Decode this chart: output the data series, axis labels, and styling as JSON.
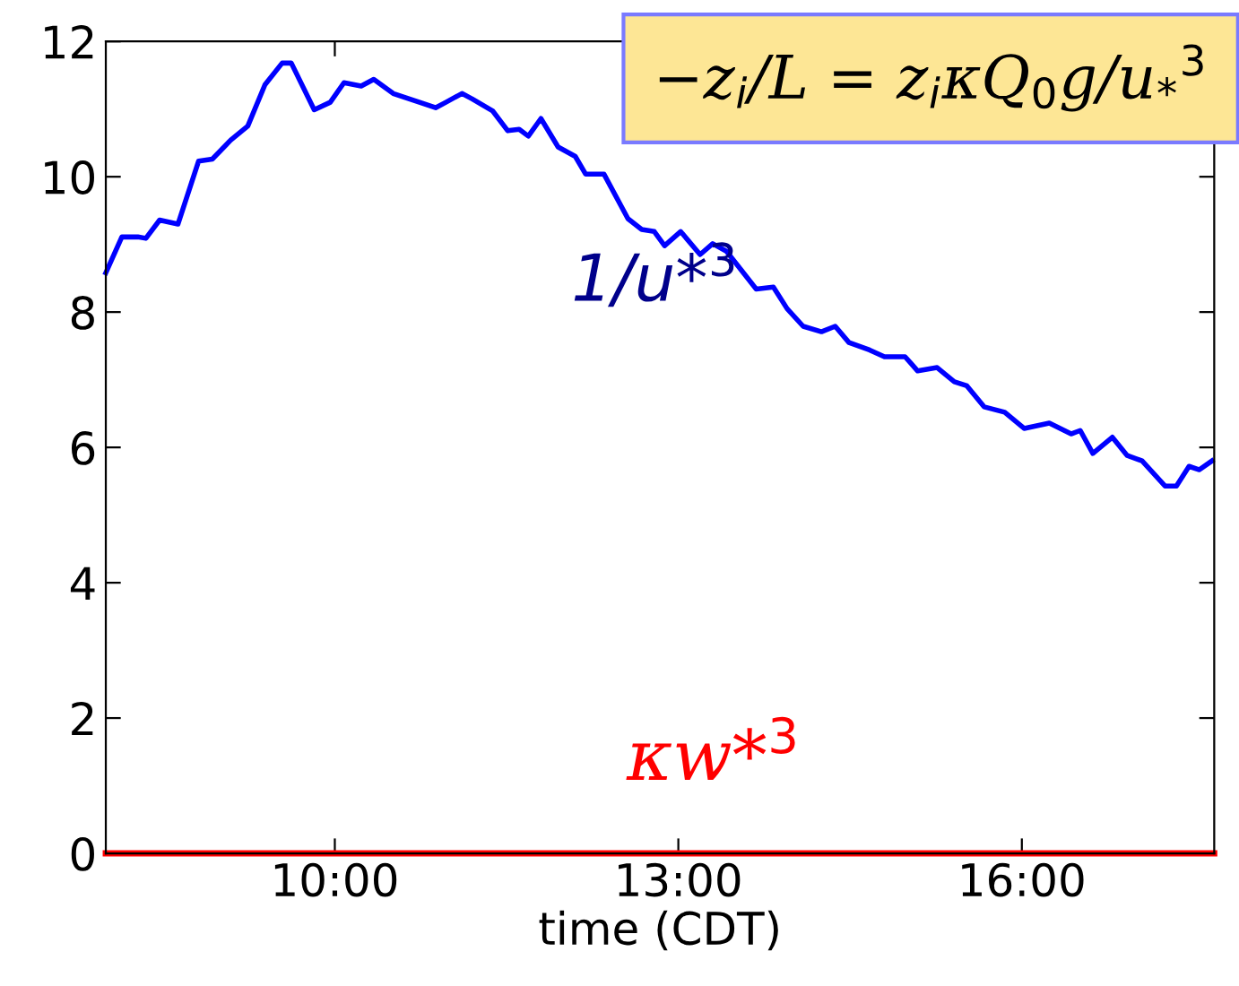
{
  "chart_data": {
    "type": "line",
    "xlabel": "time (CDT)",
    "xlim": [
      8,
      17.68
    ],
    "ylim": [
      0,
      12
    ],
    "xticks": [
      {
        "value": 10,
        "label": "10:00"
      },
      {
        "value": 13,
        "label": "13:00"
      },
      {
        "value": 16,
        "label": "16:00"
      }
    ],
    "yticks": [
      0,
      2,
      4,
      6,
      8,
      10,
      12
    ],
    "grid": false,
    "legend": false,
    "annotations": [
      "−z$_{i}$/L = z$_{i}$κQ$_{0}$g/u$_{*}$$^{3}$"
    ],
    "series": [
      {
        "name": "1/u*$^{3}$",
        "color": "#0000ff",
        "x": [
          8.0,
          8.14,
          8.28,
          8.35,
          8.47,
          8.63,
          8.81,
          8.93,
          9.09,
          9.24,
          9.39,
          9.54,
          9.62,
          9.82,
          9.96,
          10.08,
          10.23,
          10.34,
          10.51,
          10.74,
          10.88,
          10.97,
          11.11,
          11.2,
          11.38,
          11.51,
          11.61,
          11.69,
          11.8,
          11.95,
          12.1,
          12.19,
          12.35,
          12.56,
          12.68,
          12.79,
          12.88,
          13.02,
          13.19,
          13.3,
          13.42,
          13.68,
          13.83,
          13.95,
          14.09,
          14.25,
          14.37,
          14.49,
          14.67,
          14.8,
          14.98,
          15.09,
          15.26,
          15.41,
          15.52,
          15.67,
          15.85,
          16.02,
          16.24,
          16.43,
          16.51,
          16.62,
          16.79,
          16.92,
          17.05,
          17.25,
          17.35,
          17.46,
          17.55,
          17.66
        ],
        "values": [
          8.58,
          9.11,
          9.11,
          9.09,
          9.36,
          9.3,
          10.23,
          10.26,
          10.54,
          10.75,
          11.36,
          11.68,
          11.68,
          10.99,
          11.1,
          11.39,
          11.34,
          11.44,
          11.23,
          11.1,
          11.02,
          11.1,
          11.23,
          11.15,
          10.97,
          10.68,
          10.7,
          10.6,
          10.86,
          10.44,
          10.3,
          10.04,
          10.04,
          9.38,
          9.22,
          9.19,
          8.98,
          9.19,
          8.85,
          9.01,
          8.9,
          8.34,
          8.37,
          8.05,
          7.79,
          7.71,
          7.79,
          7.55,
          7.44,
          7.34,
          7.34,
          7.13,
          7.18,
          6.97,
          6.91,
          6.6,
          6.52,
          6.28,
          6.36,
          6.2,
          6.25,
          5.91,
          6.15,
          5.88,
          5.8,
          5.43,
          5.43,
          5.72,
          5.67,
          5.8
        ]
      },
      {
        "name": "κw*$^{3}$",
        "color": "#ff0000",
        "x": [
          8.0,
          17.68
        ],
        "values": [
          0,
          0
        ]
      }
    ]
  }
}
